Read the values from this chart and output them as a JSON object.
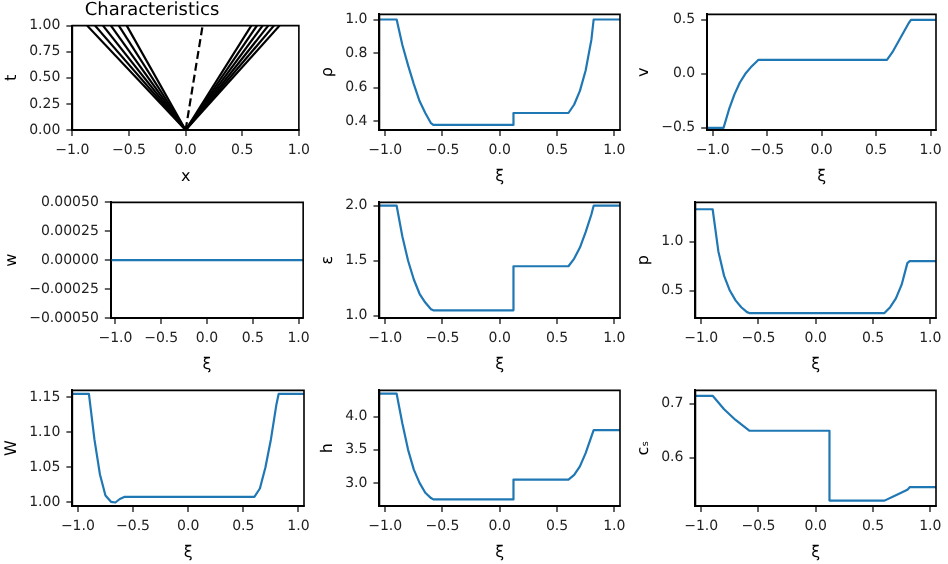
{
  "chart_data": [
    {
      "type": "line",
      "title": "Characteristics",
      "xlabel": "x",
      "ylabel": "t",
      "xlim": [
        -1,
        1
      ],
      "ylim": [
        0,
        1
      ],
      "xticks": [
        {
          "value": -1,
          "label": "−1.0"
        },
        {
          "value": -0.5,
          "label": "−0.5"
        },
        {
          "value": 0,
          "label": "0.0"
        },
        {
          "value": 0.5,
          "label": "0.5"
        },
        {
          "value": 1,
          "label": "1.0"
        }
      ],
      "yticks": [
        {
          "value": 0,
          "label": "0.00"
        },
        0.25,
        {
          "value": 0.5,
          "label": "0.50"
        },
        0.75,
        {
          "value": 1,
          "label": "1.00"
        }
      ],
      "grid": false,
      "legend": false,
      "marker": "none",
      "series": [
        {
          "color": "#000000",
          "x": [
            0,
            -0.87
          ],
          "values": [
            0,
            1
          ]
        },
        {
          "color": "#000000",
          "x": [
            0,
            -0.8
          ],
          "values": [
            0,
            1
          ]
        },
        {
          "color": "#000000",
          "x": [
            0,
            -0.73
          ],
          "values": [
            0,
            1
          ]
        },
        {
          "color": "#000000",
          "x": [
            0,
            -0.66
          ],
          "values": [
            0,
            1
          ]
        },
        {
          "color": "#000000",
          "x": [
            0,
            -0.59
          ],
          "values": [
            0,
            1
          ]
        },
        {
          "color": "#000000",
          "x": [
            0,
            -0.52
          ],
          "values": [
            0,
            1
          ]
        },
        {
          "color": "#000000",
          "x": [
            0,
            0.58
          ],
          "values": [
            0,
            1
          ]
        },
        {
          "color": "#000000",
          "x": [
            0,
            0.63
          ],
          "values": [
            0,
            1
          ]
        },
        {
          "color": "#000000",
          "x": [
            0,
            0.68
          ],
          "values": [
            0,
            1
          ]
        },
        {
          "color": "#000000",
          "x": [
            0,
            0.73
          ],
          "values": [
            0,
            1
          ]
        },
        {
          "color": "#000000",
          "x": [
            0,
            0.78
          ],
          "values": [
            0,
            1
          ]
        },
        {
          "color": "#000000",
          "x": [
            0,
            0.83
          ],
          "values": [
            0,
            1
          ]
        },
        {
          "color": "#000000",
          "x": [
            0,
            0.15
          ],
          "values": [
            0,
            1
          ],
          "line_style": "dashed"
        }
      ]
    },
    {
      "type": "line",
      "xlabel": "ξ",
      "ylabel": "ρ",
      "xlim": [
        -1.05,
        1.05
      ],
      "ylim": [
        0.35,
        1.03
      ],
      "xticks": [
        {
          "value": -1,
          "label": "−1.0"
        },
        {
          "value": -0.5,
          "label": "−0.5"
        },
        {
          "value": 0,
          "label": "0.0"
        },
        {
          "value": 0.5,
          "label": "0.5"
        },
        {
          "value": 1,
          "label": "1.0"
        }
      ],
      "yticks": [
        0.4,
        0.6,
        0.8,
        {
          "value": 1,
          "label": "1.0"
        }
      ],
      "grid": false,
      "legend": false,
      "marker": "none",
      "series": [
        {
          "color": "#1f77b4",
          "x": [
            -1.05,
            -0.9,
            -0.85,
            -0.8,
            -0.75,
            -0.7,
            -0.65,
            -0.6,
            -0.58,
            0.12,
            0.12,
            0.6,
            0.65,
            0.7,
            0.75,
            0.8,
            0.82,
            1.05
          ],
          "values": [
            1,
            1,
            0.85,
            0.73,
            0.62,
            0.52,
            0.45,
            0.39,
            0.38,
            0.38,
            0.45,
            0.45,
            0.5,
            0.58,
            0.7,
            0.88,
            1,
            1
          ]
        }
      ]
    },
    {
      "type": "line",
      "xlabel": "ξ",
      "ylabel": "v",
      "xlim": [
        -1.05,
        1.05
      ],
      "ylim": [
        -0.52,
        0.55
      ],
      "xticks": [
        {
          "value": -1,
          "label": "−1.0"
        },
        {
          "value": -0.5,
          "label": "−0.5"
        },
        {
          "value": 0,
          "label": "0.0"
        },
        {
          "value": 0.5,
          "label": "0.5"
        },
        {
          "value": 1,
          "label": "1.0"
        }
      ],
      "yticks": [
        {
          "value": -0.5,
          "label": "−0.5"
        },
        {
          "value": 0,
          "label": "0.0"
        },
        0.5
      ],
      "grid": false,
      "legend": false,
      "marker": "none",
      "series": [
        {
          "color": "#1f77b4",
          "x": [
            -1.05,
            -0.9,
            -0.85,
            -0.8,
            -0.75,
            -0.7,
            -0.65,
            -0.6,
            -0.58,
            0.6,
            0.65,
            0.7,
            0.75,
            0.8,
            0.82,
            1.05
          ],
          "values": [
            -0.5,
            -0.5,
            -0.33,
            -0.19,
            -0.08,
            0,
            0.06,
            0.11,
            0.13,
            0.13,
            0.2,
            0.29,
            0.38,
            0.47,
            0.5,
            0.5
          ]
        }
      ]
    },
    {
      "type": "line",
      "xlabel": "ξ",
      "ylabel": "w",
      "xlim": [
        -1.05,
        1.05
      ],
      "ylim": [
        -0.0005,
        0.0005
      ],
      "xticks": [
        {
          "value": -1,
          "label": "−1.0"
        },
        {
          "value": -0.5,
          "label": "−0.5"
        },
        {
          "value": 0,
          "label": "0.0"
        },
        {
          "value": 0.5,
          "label": "0.5"
        },
        {
          "value": 1,
          "label": "1.0"
        }
      ],
      "yticks": [
        {
          "value": -0.0005,
          "label": "−0.00050"
        },
        {
          "value": -0.00025,
          "label": "−0.00025"
        },
        {
          "value": 0,
          "label": "0.00000"
        },
        {
          "value": 0.00025,
          "label": "0.00025"
        },
        {
          "value": 0.0005,
          "label": "0.00050"
        }
      ],
      "grid": false,
      "legend": false,
      "marker": "none",
      "series": [
        {
          "color": "#1f77b4",
          "x": [
            -1.05,
            1.05
          ],
          "values": [
            0,
            0
          ]
        }
      ]
    },
    {
      "type": "line",
      "xlabel": "ξ",
      "ylabel": "ε",
      "xlim": [
        -1.05,
        1.05
      ],
      "ylim": [
        0.98,
        2.03
      ],
      "xticks": [
        {
          "value": -1,
          "label": "−1.0"
        },
        {
          "value": -0.5,
          "label": "−0.5"
        },
        {
          "value": 0,
          "label": "0.0"
        },
        {
          "value": 0.5,
          "label": "0.5"
        },
        {
          "value": 1,
          "label": "1.0"
        }
      ],
      "yticks": [
        {
          "value": 1,
          "label": "1.0"
        },
        1.5,
        {
          "value": 2,
          "label": "2.0"
        }
      ],
      "grid": false,
      "legend": false,
      "marker": "none",
      "series": [
        {
          "color": "#1f77b4",
          "x": [
            -1.05,
            -0.9,
            -0.85,
            -0.8,
            -0.75,
            -0.7,
            -0.65,
            -0.6,
            -0.58,
            0.12,
            0.12,
            0.6,
            0.65,
            0.7,
            0.75,
            0.8,
            0.82,
            1.05
          ],
          "values": [
            2,
            2,
            1.72,
            1.5,
            1.33,
            1.2,
            1.12,
            1.06,
            1.05,
            1.05,
            1.45,
            1.45,
            1.52,
            1.62,
            1.76,
            1.92,
            2,
            2
          ]
        }
      ]
    },
    {
      "type": "line",
      "xlabel": "ξ",
      "ylabel": "p",
      "xlim": [
        -1.05,
        1.05
      ],
      "ylim": [
        0.22,
        1.4
      ],
      "xticks": [
        {
          "value": -1,
          "label": "−1.0"
        },
        {
          "value": -0.5,
          "label": "−0.5"
        },
        {
          "value": 0,
          "label": "0.0"
        },
        {
          "value": 0.5,
          "label": "0.5"
        },
        {
          "value": 1,
          "label": "1.0"
        }
      ],
      "yticks": [
        0.5,
        {
          "value": 1,
          "label": "1.0"
        }
      ],
      "grid": false,
      "legend": false,
      "marker": "none",
      "series": [
        {
          "color": "#1f77b4",
          "x": [
            -1.05,
            -0.9,
            -0.85,
            -0.8,
            -0.75,
            -0.7,
            -0.65,
            -0.6,
            -0.58,
            0.6,
            0.65,
            0.7,
            0.75,
            0.8,
            0.82,
            1.05
          ],
          "values": [
            1.33,
            1.33,
            0.9,
            0.65,
            0.5,
            0.4,
            0.33,
            0.28,
            0.27,
            0.27,
            0.33,
            0.42,
            0.56,
            0.78,
            0.8,
            0.8
          ]
        }
      ]
    },
    {
      "type": "line",
      "xlabel": "ξ",
      "ylabel": "W",
      "xlim": [
        -1.05,
        1.05
      ],
      "ylim": [
        0.995,
        1.16
      ],
      "xticks": [
        {
          "value": -1,
          "label": "−1.0"
        },
        {
          "value": -0.5,
          "label": "−0.5"
        },
        {
          "value": 0,
          "label": "0.0"
        },
        {
          "value": 0.5,
          "label": "0.5"
        },
        {
          "value": 1,
          "label": "1.0"
        }
      ],
      "yticks": [
        {
          "value": 1,
          "label": "1.00"
        },
        1.05,
        {
          "value": 1.1,
          "label": "1.10"
        },
        1.15
      ],
      "grid": false,
      "legend": false,
      "marker": "none",
      "series": [
        {
          "color": "#1f77b4",
          "x": [
            -1.05,
            -0.9,
            -0.85,
            -0.8,
            -0.75,
            -0.7,
            -0.66,
            -0.62,
            -0.58,
            0.6,
            0.65,
            0.7,
            0.75,
            0.8,
            0.82,
            1.05
          ],
          "values": [
            1.155,
            1.155,
            1.09,
            1.04,
            1.01,
            1.001,
            1,
            1.005,
            1.008,
            1.008,
            1.02,
            1.05,
            1.09,
            1.14,
            1.155,
            1.155
          ]
        }
      ]
    },
    {
      "type": "line",
      "xlabel": "ξ",
      "ylabel": "h",
      "xlim": [
        -1.05,
        1.05
      ],
      "ylim": [
        2.65,
        4.4
      ],
      "xticks": [
        {
          "value": -1,
          "label": "−1.0"
        },
        {
          "value": -0.5,
          "label": "−0.5"
        },
        {
          "value": 0,
          "label": "0.0"
        },
        {
          "value": 0.5,
          "label": "0.5"
        },
        {
          "value": 1,
          "label": "1.0"
        }
      ],
      "yticks": [
        {
          "value": 3,
          "label": "3.0"
        },
        3.5,
        {
          "value": 4,
          "label": "4.0"
        }
      ],
      "grid": false,
      "legend": false,
      "marker": "none",
      "series": [
        {
          "color": "#1f77b4",
          "x": [
            -1.05,
            -0.9,
            -0.85,
            -0.8,
            -0.75,
            -0.7,
            -0.65,
            -0.6,
            -0.58,
            0.12,
            0.12,
            0.6,
            0.65,
            0.7,
            0.75,
            0.8,
            0.82,
            1.05
          ],
          "values": [
            4.35,
            4.35,
            3.9,
            3.5,
            3.2,
            3,
            2.85,
            2.77,
            2.75,
            2.75,
            3.05,
            3.05,
            3.12,
            3.25,
            3.45,
            3.7,
            3.8,
            3.8
          ]
        }
      ]
    },
    {
      "type": "line",
      "xlabel": "ξ",
      "ylabel": "cₛ",
      "xlim": [
        -1.05,
        1.05
      ],
      "ylim": [
        0.51,
        0.725
      ],
      "xticks": [
        {
          "value": -1,
          "label": "−1.0"
        },
        {
          "value": -0.5,
          "label": "−0.5"
        },
        {
          "value": 0,
          "label": "0.0"
        },
        {
          "value": 0.5,
          "label": "0.5"
        },
        {
          "value": 1,
          "label": "1.0"
        }
      ],
      "yticks": [
        0.6,
        0.7
      ],
      "grid": false,
      "legend": false,
      "marker": "none",
      "series": [
        {
          "color": "#1f77b4",
          "x": [
            -1.05,
            -0.9,
            -0.8,
            -0.7,
            -0.58,
            0.12,
            0.12,
            0.6,
            0.7,
            0.8,
            0.82,
            1.05
          ],
          "values": [
            0.715,
            0.715,
            0.69,
            0.67,
            0.65,
            0.65,
            0.52,
            0.52,
            0.53,
            0.54,
            0.545,
            0.545
          ]
        }
      ]
    }
  ]
}
